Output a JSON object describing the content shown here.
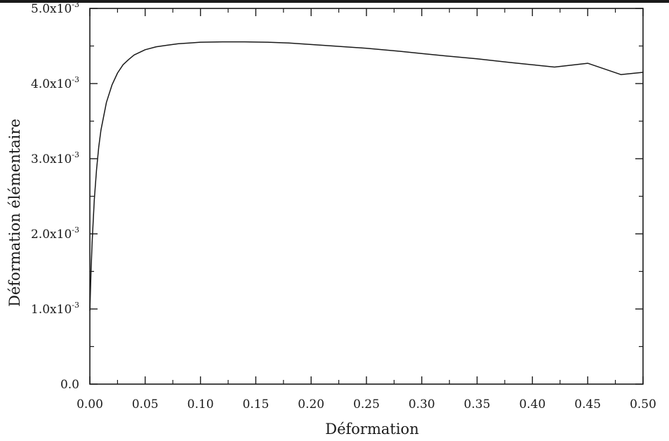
{
  "chart_data": {
    "type": "line",
    "title": "",
    "xlabel": "Déformation",
    "ylabel": "Déformation élémentaire",
    "xlim": [
      0.0,
      0.5
    ],
    "ylim": [
      0.0,
      0.005
    ],
    "x_ticks": [
      {
        "value": 0.0,
        "label": "0.00"
      },
      {
        "value": 0.05,
        "label": "0.05"
      },
      {
        "value": 0.1,
        "label": "0.10"
      },
      {
        "value": 0.15,
        "label": "0.15"
      },
      {
        "value": 0.2,
        "label": "0.20"
      },
      {
        "value": 0.25,
        "label": "0.25"
      },
      {
        "value": 0.3,
        "label": "0.30"
      },
      {
        "value": 0.35,
        "label": "0.35"
      },
      {
        "value": 0.4,
        "label": "0.40"
      },
      {
        "value": 0.45,
        "label": "0.45"
      },
      {
        "value": 0.5,
        "label": "0.50"
      }
    ],
    "y_ticks": [
      {
        "value": 0.0,
        "mantissa": "0.0",
        "exponent": ""
      },
      {
        "value": 0.001,
        "mantissa": "1.0x10",
        "exponent": "-3"
      },
      {
        "value": 0.002,
        "mantissa": "2.0x10",
        "exponent": "-3"
      },
      {
        "value": 0.003,
        "mantissa": "3.0x10",
        "exponent": "-3"
      },
      {
        "value": 0.004,
        "mantissa": "4.0x10",
        "exponent": "-3"
      },
      {
        "value": 0.005,
        "mantissa": "5.0x10",
        "exponent": "-3"
      }
    ],
    "grid": false,
    "series": [
      {
        "x": [
          0.0,
          0.001,
          0.002,
          0.004,
          0.006,
          0.008,
          0.01,
          0.015,
          0.02,
          0.025,
          0.03,
          0.035,
          0.04,
          0.05,
          0.06,
          0.07,
          0.08,
          0.09,
          0.1,
          0.12,
          0.14,
          0.16,
          0.18,
          0.2,
          0.22,
          0.25,
          0.28,
          0.3,
          0.32,
          0.35,
          0.38,
          0.4,
          0.42,
          0.45,
          0.48,
          0.5
        ],
        "y": [
          0.00098,
          0.00148,
          0.00188,
          0.00245,
          0.00285,
          0.00315,
          0.00338,
          0.00375,
          0.00398,
          0.00414,
          0.00425,
          0.00432,
          0.00438,
          0.00445,
          0.00449,
          0.00451,
          0.00453,
          0.00454,
          0.00455,
          0.004555,
          0.004555,
          0.00455,
          0.00454,
          0.00452,
          0.0045,
          0.00447,
          0.00443,
          0.0044,
          0.00437,
          0.00433,
          0.00428,
          0.00425,
          0.00422,
          0.00427,
          0.00412,
          0.00415
        ]
      }
    ]
  }
}
